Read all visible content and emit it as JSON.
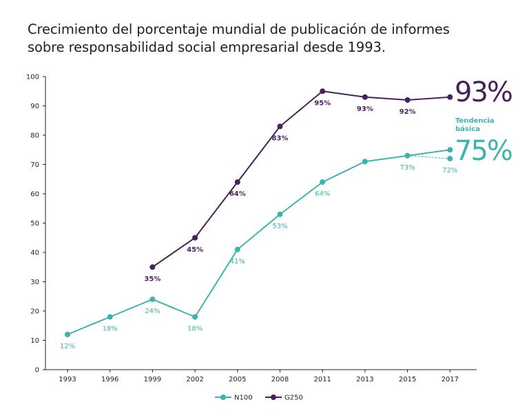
{
  "chart_data": {
    "type": "line",
    "title": "Crecimiento del porcentaje mundial de publicación de informes sobre responsabilidad social empresarial desde 1993.",
    "title_lines": [
      "Crecimiento del porcentaje mundial de publicación de informes",
      "sobre responsabilidad social empresarial desde 1993."
    ],
    "xlabel": "",
    "ylabel": "",
    "categories": [
      "1993",
      "1996",
      "1999",
      "2002",
      "2005",
      "2008",
      "2011",
      "2013",
      "2015",
      "2017"
    ],
    "ylim": [
      0,
      100
    ],
    "yticks": [
      "0",
      "10",
      "20",
      "30",
      "40",
      "50",
      "60",
      "70",
      "80",
      "90",
      "100"
    ],
    "grid": false,
    "legend_position": "bottom",
    "series": [
      {
        "name": "N100",
        "color": "#3cb4ab",
        "values": [
          12,
          18,
          24,
          18,
          41,
          53,
          64,
          71,
          73,
          75
        ],
        "labels": [
          "12%",
          "18%",
          "24%",
          "18%",
          "41%",
          "53%",
          "64%",
          "",
          "73%",
          ""
        ]
      },
      {
        "name": "G250",
        "color": "#47215e",
        "values": [
          null,
          null,
          35,
          45,
          64,
          83,
          95,
          93,
          92,
          93
        ],
        "labels": [
          "",
          "",
          "35%",
          "45%",
          "64%",
          "83%",
          "95%",
          "93%",
          "92%",
          ""
        ]
      }
    ],
    "basic_trend": {
      "label": "Tendencia básica",
      "label_lines": [
        "Tendencia",
        "básica"
      ],
      "from_category": "2015",
      "from_value": 73,
      "category": "2017",
      "value": 72,
      "value_label": "72%",
      "color": "#3cb4ab"
    },
    "annotations": [
      {
        "series": "G250",
        "text": "93%",
        "color": "#47215e"
      },
      {
        "series": "N100",
        "text": "75%",
        "color": "#3cb4ab"
      }
    ]
  }
}
